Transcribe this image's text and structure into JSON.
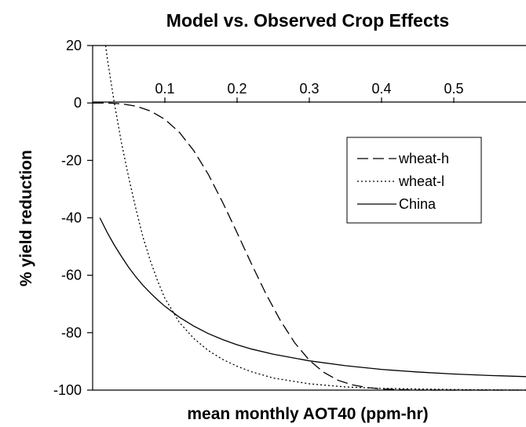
{
  "chart_data": {
    "type": "line",
    "title": "Model vs. Observed Crop Effects",
    "xlabel": "mean monthly AOT40 (ppm-hr)",
    "ylabel": "% yield reduction",
    "xlim": [
      0,
      0.6
    ],
    "ylim": [
      -100,
      20
    ],
    "x_ticks": [
      "0.1",
      "0.2",
      "0.3",
      "0.4",
      "0.5"
    ],
    "y_ticks": [
      "20",
      "0",
      "-20",
      "-40",
      "-60",
      "-80",
      "-100"
    ],
    "x_tick_values": [
      0.1,
      0.2,
      0.3,
      0.4,
      0.5
    ],
    "y_tick_values": [
      20,
      0,
      -20,
      -40,
      -60,
      -80,
      -100
    ],
    "legend_position": "top-right, inside plot",
    "series": [
      {
        "name": "wheat-h",
        "style": "dashed",
        "color": "#000000",
        "x": [
          0,
          0.02,
          0.04,
          0.06,
          0.08,
          0.1,
          0.12,
          0.14,
          0.16,
          0.18,
          0.2,
          0.22,
          0.24,
          0.26,
          0.28,
          0.3,
          0.32,
          0.34,
          0.36,
          0.38,
          0.4,
          0.45,
          0.5,
          0.55,
          0.6
        ],
        "y": [
          0,
          0,
          -0.3,
          -1.1,
          -2.8,
          -5.7,
          -10.2,
          -16.6,
          -24.8,
          -34.6,
          -45.2,
          -56.1,
          -66.5,
          -75.8,
          -83.6,
          -89.6,
          -93.8,
          -96.6,
          -98.2,
          -99.1,
          -99.6,
          -100,
          -100,
          -100,
          -100
        ]
      },
      {
        "name": "wheat-l",
        "style": "dotted",
        "color": "#000000",
        "x": [
          0.018,
          0.02,
          0.025,
          0.03,
          0.04,
          0.05,
          0.06,
          0.07,
          0.08,
          0.09,
          0.1,
          0.12,
          0.14,
          0.16,
          0.18,
          0.2,
          0.22,
          0.25,
          0.3,
          0.35,
          0.4,
          0.5,
          0.6
        ],
        "y": [
          20,
          16,
          8,
          0,
          -14,
          -26,
          -37,
          -47,
          -55,
          -62,
          -68,
          -76.4,
          -82,
          -86.2,
          -89.3,
          -91.7,
          -93.6,
          -95.8,
          -97.8,
          -98.9,
          -99.4,
          -99.8,
          -100
        ]
      },
      {
        "name": "China",
        "style": "solid",
        "color": "#000000",
        "x": [
          0.01,
          0.02,
          0.03,
          0.04,
          0.05,
          0.06,
          0.07,
          0.08,
          0.09,
          0.1,
          0.12,
          0.14,
          0.16,
          0.18,
          0.2,
          0.22,
          0.25,
          0.3,
          0.35,
          0.4,
          0.45,
          0.5,
          0.55,
          0.6
        ],
        "y": [
          -40,
          -45,
          -49.5,
          -53.5,
          -57.3,
          -60.6,
          -63.6,
          -66.2,
          -68.6,
          -70.8,
          -74.6,
          -77.7,
          -80.3,
          -82.4,
          -84.2,
          -85.7,
          -87.5,
          -89.8,
          -91.5,
          -92.8,
          -93.7,
          -94.4,
          -94.9,
          -95.3
        ]
      }
    ]
  }
}
